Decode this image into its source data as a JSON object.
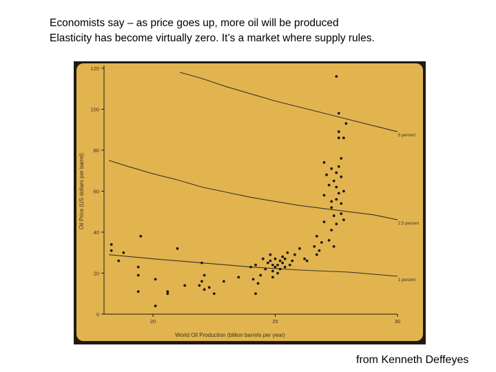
{
  "header": {
    "line1": "Economists say – as price goes up, more oil will be produced",
    "line2": "Elasticity has become virtually zero. It’s a market where supply rules."
  },
  "credit": "from Kenneth Deffeyes",
  "colors": {
    "panel": "#e2b44f",
    "frame": "#1f1a12",
    "ink": "#1a1a1a",
    "axis_text": "#3a3020"
  },
  "chart_data": {
    "type": "scatter",
    "xlabel": "World Oil Production (billion barrels per year)",
    "ylabel": "Oil Price (US dollars per barrel)",
    "xlim": [
      18,
      30
    ],
    "ylim": [
      0,
      120
    ],
    "xticks": [
      20,
      25,
      30
    ],
    "yticks": [
      0,
      20,
      40,
      60,
      80,
      100,
      120
    ],
    "grid": false,
    "points": [
      [
        18.3,
        34
      ],
      [
        18.3,
        31
      ],
      [
        18.6,
        26
      ],
      [
        18.8,
        30
      ],
      [
        19.5,
        38
      ],
      [
        19.4,
        23
      ],
      [
        19.4,
        19
      ],
      [
        19.4,
        11
      ],
      [
        20.1,
        17
      ],
      [
        20.1,
        4
      ],
      [
        20.6,
        11
      ],
      [
        20.6,
        10
      ],
      [
        21.0,
        32
      ],
      [
        21.3,
        14
      ],
      [
        21.9,
        14
      ],
      [
        22.0,
        25
      ],
      [
        22.0,
        16
      ],
      [
        22.1,
        19
      ],
      [
        22.1,
        12
      ],
      [
        22.3,
        13
      ],
      [
        22.5,
        10
      ],
      [
        22.9,
        16
      ],
      [
        23.5,
        18
      ],
      [
        24.0,
        23
      ],
      [
        24.2,
        24
      ],
      [
        24.1,
        17
      ],
      [
        24.3,
        15
      ],
      [
        24.2,
        10
      ],
      [
        24.4,
        19
      ],
      [
        24.5,
        27
      ],
      [
        24.6,
        22
      ],
      [
        24.7,
        25
      ],
      [
        24.8,
        29
      ],
      [
        24.8,
        26
      ],
      [
        24.9,
        18
      ],
      [
        24.9,
        21
      ],
      [
        24.9,
        24
      ],
      [
        25.0,
        23
      ],
      [
        25.0,
        27
      ],
      [
        25.1,
        24
      ],
      [
        25.1,
        20
      ],
      [
        25.2,
        26
      ],
      [
        25.2,
        22
      ],
      [
        25.3,
        25
      ],
      [
        25.3,
        28
      ],
      [
        25.4,
        23
      ],
      [
        25.4,
        27
      ],
      [
        25.5,
        30
      ],
      [
        25.6,
        24
      ],
      [
        25.7,
        26
      ],
      [
        25.8,
        29
      ],
      [
        26.0,
        32
      ],
      [
        26.2,
        27
      ],
      [
        26.3,
        26
      ],
      [
        26.6,
        33
      ],
      [
        26.7,
        38
      ],
      [
        26.7,
        29
      ],
      [
        26.8,
        31
      ],
      [
        26.9,
        35
      ],
      [
        27.0,
        74
      ],
      [
        27.0,
        58
      ],
      [
        27.0,
        45
      ],
      [
        27.1,
        68
      ],
      [
        27.2,
        63
      ],
      [
        27.2,
        36
      ],
      [
        27.3,
        71
      ],
      [
        27.3,
        55
      ],
      [
        27.3,
        52
      ],
      [
        27.3,
        41
      ],
      [
        27.4,
        65
      ],
      [
        27.4,
        48
      ],
      [
        27.4,
        33
      ],
      [
        27.5,
        116
      ],
      [
        27.5,
        69
      ],
      [
        27.5,
        62
      ],
      [
        27.5,
        56
      ],
      [
        27.5,
        44
      ],
      [
        27.6,
        98
      ],
      [
        27.6,
        89
      ],
      [
        27.6,
        86
      ],
      [
        27.6,
        72
      ],
      [
        27.6,
        59
      ],
      [
        27.7,
        76
      ],
      [
        27.7,
        67
      ],
      [
        27.7,
        54
      ],
      [
        27.7,
        49
      ],
      [
        27.8,
        86
      ],
      [
        27.8,
        60
      ],
      [
        27.8,
        46
      ],
      [
        27.9,
        93
      ]
    ],
    "series": [
      {
        "label": "5 percent",
        "x": [
          21.1,
          22,
          23,
          24,
          25,
          26,
          27,
          28,
          29,
          30
        ],
        "y": [
          118,
          115,
          111,
          107.5,
          104,
          101,
          98,
          95,
          92,
          89
        ]
      },
      {
        "label": "2.5 percent",
        "x": [
          18.2,
          19,
          20,
          21,
          22,
          23,
          24,
          25,
          26,
          27,
          28,
          29,
          30
        ],
        "y": [
          75,
          72,
          68.5,
          65.5,
          62,
          59.5,
          57,
          55,
          53,
          51.5,
          50,
          48.5,
          46
        ]
      },
      {
        "label": "1 percent",
        "x": [
          18.2,
          20,
          22,
          24,
          26,
          28,
          30
        ],
        "y": [
          29,
          27,
          25,
          23,
          21.5,
          20.5,
          18.5
        ]
      }
    ]
  }
}
